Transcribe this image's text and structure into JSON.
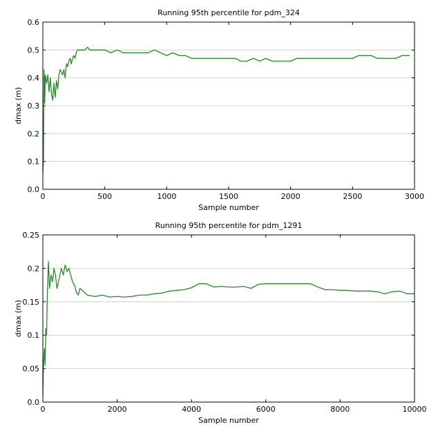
{
  "chart_data": [
    {
      "type": "line",
      "title": "Running 95th percentile for pdm_324",
      "xlabel": "Sample number",
      "ylabel": "dmax (m)",
      "xlim": [
        0,
        3000
      ],
      "ylim": [
        0,
        0.6
      ],
      "xticks": [
        "0",
        "500",
        "1000",
        "1500",
        "2000",
        "2500",
        "3000"
      ],
      "yticks": [
        "0.0",
        "0.1",
        "0.2",
        "0.3",
        "0.4",
        "0.5",
        "0.6"
      ],
      "grid": "horizontal",
      "color": "#228B22",
      "series": [
        {
          "x": [
            0,
            5,
            10,
            15,
            20,
            30,
            40,
            50,
            60,
            70,
            80,
            90,
            100,
            110,
            120,
            130,
            140,
            150,
            160,
            170,
            180,
            190,
            200,
            210,
            220,
            230,
            240,
            250,
            260,
            270,
            280,
            300,
            320,
            340,
            360,
            380,
            400,
            420,
            440,
            460,
            480,
            500,
            550,
            600,
            650,
            700,
            750,
            800,
            850,
            900,
            950,
            1000,
            1050,
            1100,
            1150,
            1200,
            1250,
            1300,
            1350,
            1400,
            1450,
            1500,
            1550,
            1600,
            1650,
            1700,
            1750,
            1800,
            1850,
            1900,
            1950,
            2000,
            2050,
            2100,
            2150,
            2200,
            2250,
            2300,
            2350,
            2400,
            2450,
            2500,
            2550,
            2600,
            2650,
            2700,
            2750,
            2800,
            2850,
            2900,
            2960
          ],
          "y": [
            0.06,
            0.1,
            0.43,
            0.31,
            0.41,
            0.38,
            0.41,
            0.35,
            0.4,
            0.34,
            0.32,
            0.38,
            0.33,
            0.39,
            0.36,
            0.41,
            0.43,
            0.42,
            0.41,
            0.43,
            0.4,
            0.45,
            0.44,
            0.46,
            0.47,
            0.45,
            0.47,
            0.48,
            0.47,
            0.49,
            0.5,
            0.5,
            0.5,
            0.5,
            0.51,
            0.5,
            0.5,
            0.5,
            0.5,
            0.5,
            0.5,
            0.5,
            0.49,
            0.5,
            0.49,
            0.49,
            0.49,
            0.49,
            0.49,
            0.5,
            0.49,
            0.48,
            0.49,
            0.48,
            0.48,
            0.47,
            0.47,
            0.47,
            0.47,
            0.47,
            0.47,
            0.47,
            0.47,
            0.46,
            0.46,
            0.47,
            0.46,
            0.47,
            0.46,
            0.46,
            0.46,
            0.46,
            0.47,
            0.47,
            0.47,
            0.47,
            0.47,
            0.47,
            0.47,
            0.47,
            0.47,
            0.47,
            0.48,
            0.48,
            0.48,
            0.47,
            0.47,
            0.47,
            0.47,
            0.48,
            0.48
          ]
        }
      ]
    },
    {
      "type": "line",
      "title": "Running 95th percentile for pdm_1291",
      "xlabel": "Sample number",
      "ylabel": "dmax (m)",
      "xlim": [
        0,
        10000
      ],
      "ylim": [
        0,
        0.25
      ],
      "xticks": [
        "0",
        "2000",
        "4000",
        "6000",
        "8000",
        "10000"
      ],
      "yticks": [
        "0.0",
        "0.05",
        "0.1",
        "0.15",
        "0.2",
        "0.25"
      ],
      "grid": "horizontal",
      "color": "#228B22",
      "series": [
        {
          "x": [
            0,
            20,
            40,
            60,
            80,
            100,
            120,
            150,
            180,
            220,
            260,
            300,
            340,
            380,
            420,
            460,
            500,
            550,
            600,
            650,
            700,
            750,
            800,
            850,
            900,
            950,
            1000,
            1100,
            1200,
            1400,
            1600,
            1800,
            2000,
            2200,
            2400,
            2600,
            2800,
            3000,
            3200,
            3400,
            3600,
            3800,
            4000,
            4200,
            4400,
            4600,
            4800,
            5000,
            5200,
            5400,
            5600,
            5800,
            6000,
            6200,
            6400,
            6600,
            6800,
            7000,
            7200,
            7400,
            7600,
            7800,
            8000,
            8200,
            8400,
            8600,
            8800,
            9000,
            9200,
            9400,
            9600,
            9800,
            10000
          ],
          "y": [
            0.01,
            0.06,
            0.08,
            0.055,
            0.11,
            0.1,
            0.16,
            0.21,
            0.17,
            0.19,
            0.18,
            0.2,
            0.19,
            0.17,
            0.18,
            0.19,
            0.2,
            0.19,
            0.205,
            0.195,
            0.2,
            0.19,
            0.18,
            0.175,
            0.165,
            0.16,
            0.17,
            0.165,
            0.16,
            0.158,
            0.16,
            0.157,
            0.158,
            0.157,
            0.158,
            0.16,
            0.16,
            0.162,
            0.163,
            0.166,
            0.167,
            0.168,
            0.171,
            0.177,
            0.177,
            0.172,
            0.173,
            0.172,
            0.172,
            0.173,
            0.17,
            0.176,
            0.177,
            0.177,
            0.177,
            0.177,
            0.177,
            0.177,
            0.177,
            0.172,
            0.168,
            0.168,
            0.167,
            0.167,
            0.166,
            0.166,
            0.166,
            0.165,
            0.162,
            0.165,
            0.166,
            0.162,
            0.162
          ]
        }
      ]
    }
  ]
}
